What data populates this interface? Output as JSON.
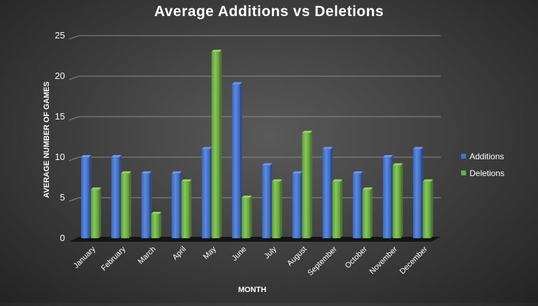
{
  "chart_data": {
    "type": "bar",
    "title": "Average Additions vs Deletions",
    "xlabel": "MONTH",
    "ylabel": "AVERAGE NUMBER OF GAMES",
    "ylim": [
      0,
      25
    ],
    "yticks": [
      0,
      5,
      10,
      15,
      20,
      25
    ],
    "grid": true,
    "legend_position": "right",
    "categories": [
      "January",
      "February",
      "March",
      "April",
      "May",
      "June",
      "July",
      "August",
      "September",
      "October",
      "November",
      "December"
    ],
    "series": [
      {
        "name": "Additions",
        "color": "#4472c4",
        "values": [
          10,
          10,
          8,
          8,
          11,
          19,
          9,
          8,
          11,
          8,
          10,
          11
        ]
      },
      {
        "name": "Deletions",
        "color": "#70ad47",
        "values": [
          6,
          8,
          3,
          7,
          23,
          5,
          7,
          13,
          7,
          6,
          9,
          7
        ]
      }
    ]
  }
}
